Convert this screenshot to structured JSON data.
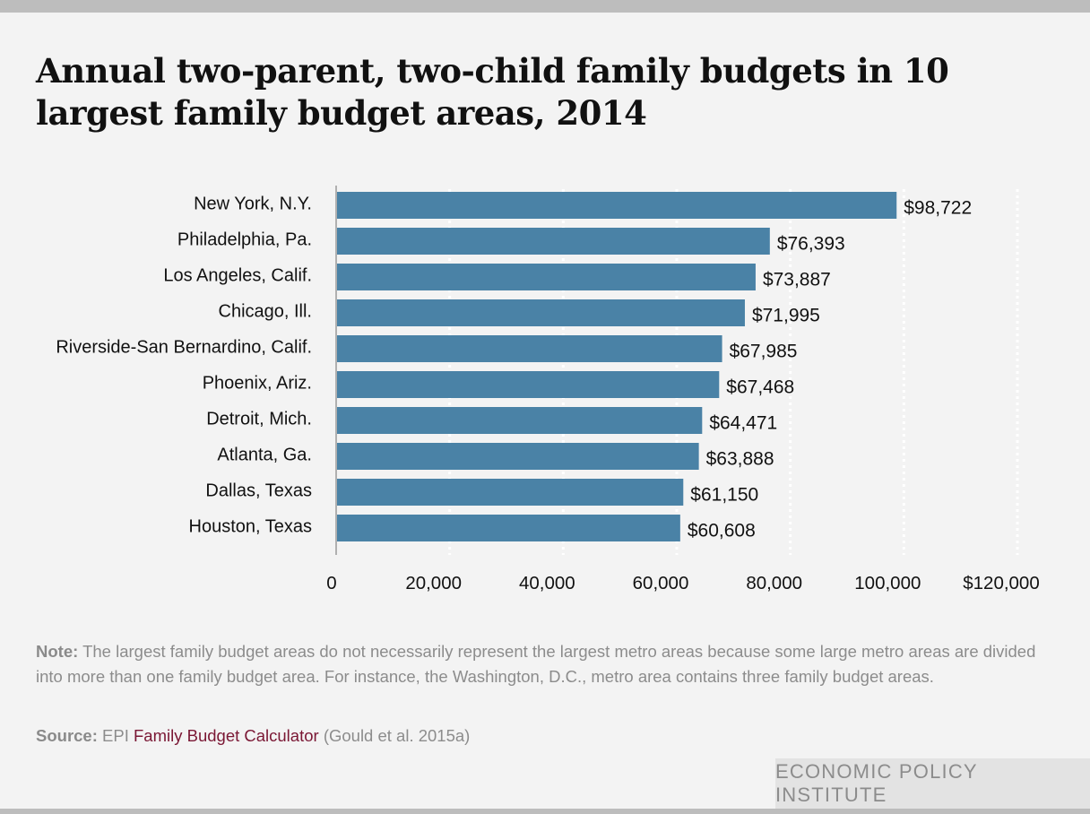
{
  "title": "Annual two-parent, two-child family budgets in 10 largest family budget areas, 2014",
  "colors": {
    "bar": "#4a82a6",
    "text": "#111111",
    "muted": "#8c8c8c",
    "link": "#7a1734",
    "background": "#f3f3f3"
  },
  "chart_data": {
    "type": "bar",
    "orientation": "horizontal",
    "title": "Annual two-parent, two-child family budgets in 10 largest family budget areas, 2014",
    "categories": [
      "New York, N.Y.",
      "Philadelphia, Pa.",
      "Los Angeles, Calif.",
      "Chicago, Ill.",
      "Riverside-San Bernardino, Calif.",
      "Phoenix, Ariz.",
      "Detroit, Mich.",
      "Atlanta, Ga.",
      "Dallas, Texas",
      "Houston, Texas"
    ],
    "values": [
      98722,
      76393,
      73887,
      71995,
      67985,
      67468,
      64471,
      63888,
      61150,
      60608
    ],
    "data_labels": [
      "$98,722",
      "$76,393",
      "$73,887",
      "$71,995",
      "$67,985",
      "$67,468",
      "$64,471",
      "$63,888",
      "$61,150",
      "$60,608"
    ],
    "xlim": [
      0,
      120000
    ],
    "xticks": [
      0,
      20000,
      40000,
      60000,
      80000,
      100000,
      120000
    ],
    "xtick_labels": [
      "0",
      "20,000",
      "40,000",
      "60,000",
      "80,000",
      "100,000",
      "$120,000"
    ],
    "grid": "vertical dotted",
    "xlabel": "",
    "ylabel": ""
  },
  "footer": {
    "note_label": "Note:",
    "note_text": "The largest family budget areas do not necessarily represent the largest metro areas because some large metro areas are divided into more than one family budget area. For instance, the Washington, D.C., metro area contains three family budget areas.",
    "source_label": "Source:",
    "source_prefix": "EPI",
    "source_link": "Family Budget Calculator",
    "source_suffix": "(Gould et al. 2015a)"
  },
  "brand": "ECONOMIC POLICY INSTITUTE"
}
